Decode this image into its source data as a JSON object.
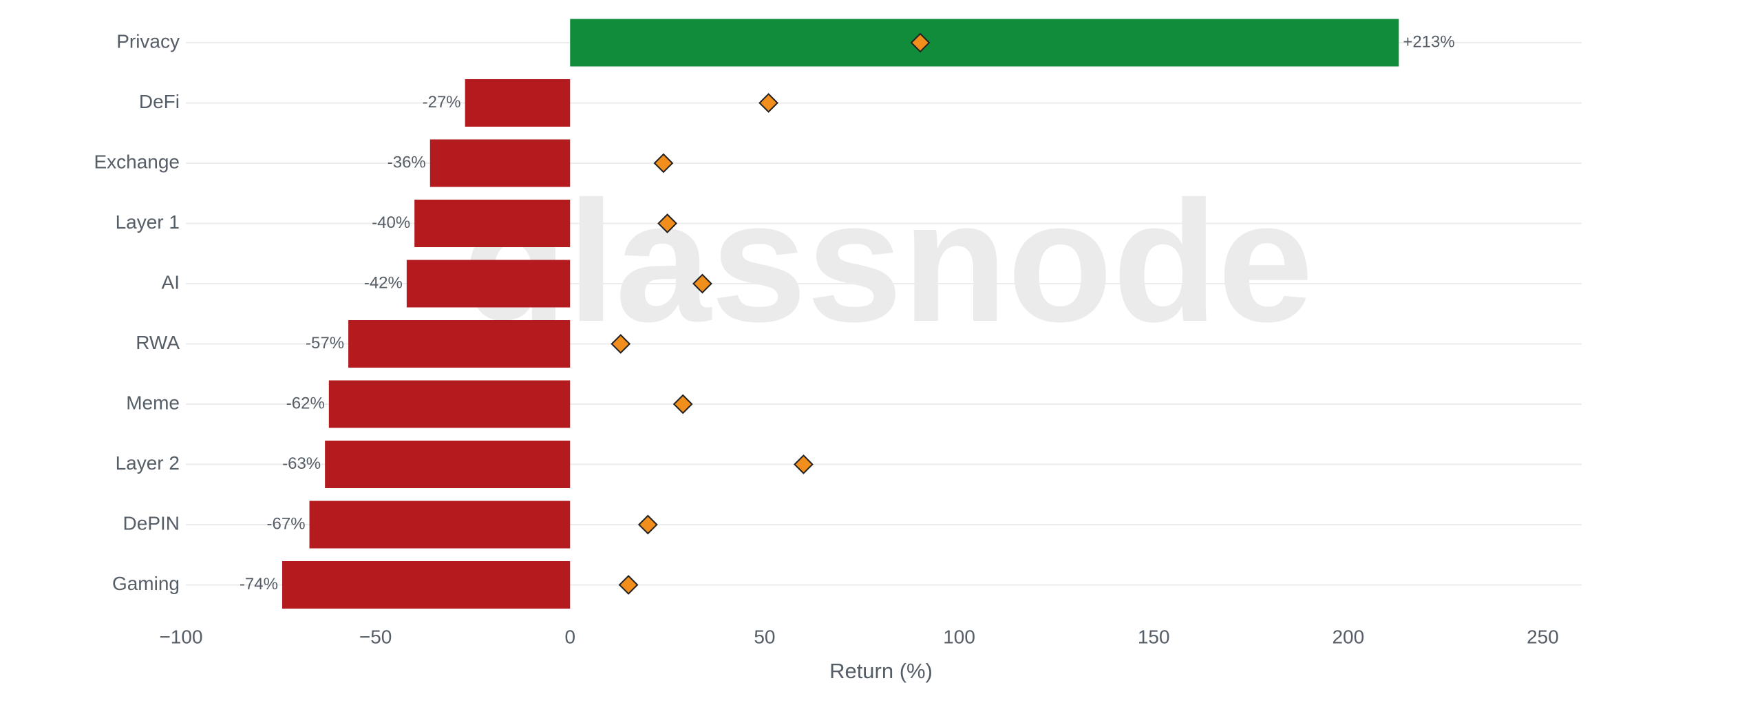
{
  "chart_data": {
    "type": "bar",
    "orientation": "horizontal",
    "watermark": "glassnode",
    "x_label": "Return (%)",
    "categories": [
      "Privacy",
      "DeFi",
      "Exchange",
      "Layer 1",
      "AI",
      "RWA",
      "Meme",
      "Layer 2",
      "DePIN",
      "Gaming"
    ],
    "series": [
      {
        "values": [
          213,
          -27,
          -36,
          -40,
          -42,
          -57,
          -62,
          -63,
          -67,
          -74
        ],
        "value_labels": [
          "+213%",
          "-27%",
          "-36%",
          "-40%",
          "-42%",
          "-57%",
          "-62%",
          "-63%",
          "-67%",
          "-74%"
        ],
        "positive_color": "#118c3b",
        "negative_color": "#b31b1f"
      },
      {
        "values": [
          90,
          51,
          24,
          25,
          34,
          13,
          29,
          60,
          20,
          15
        ],
        "color": "#f28e1c",
        "marker": "diamond"
      }
    ],
    "xlim": [
      -100,
      260
    ],
    "xticks": [
      {
        "value": -100,
        "label": "−100"
      },
      {
        "value": -50,
        "label": "−50"
      },
      0,
      50,
      100,
      150,
      200,
      250
    ],
    "grid": true
  }
}
